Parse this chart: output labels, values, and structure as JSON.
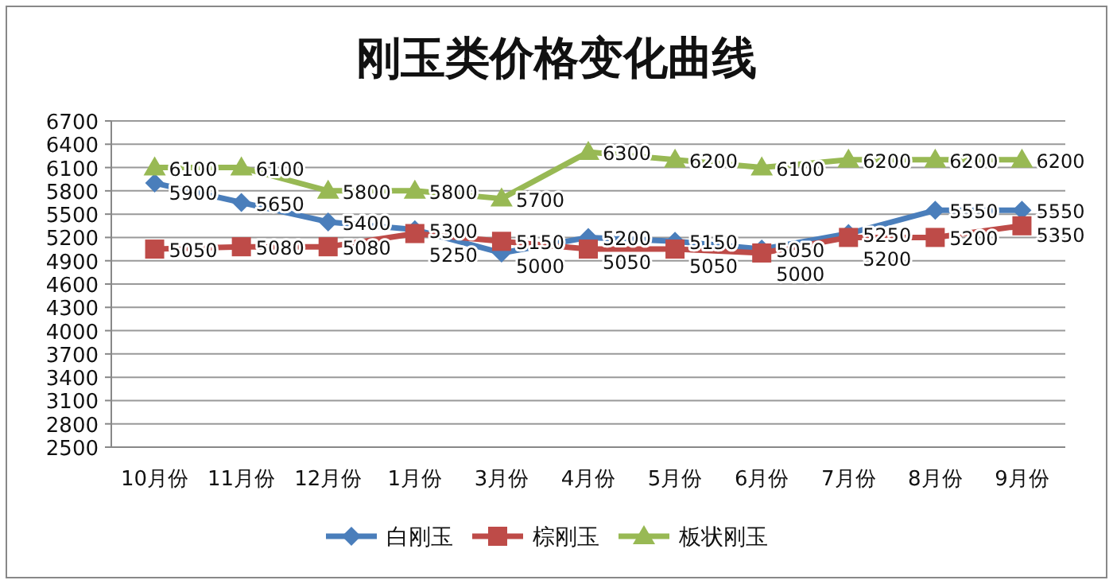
{
  "chart_data": {
    "type": "line",
    "title": "刚玉类价格变化曲线",
    "categories": [
      "10月份",
      "11月份",
      "12月份",
      "1月份",
      "3月份",
      "4月份",
      "5月份",
      "6月份",
      "7月份",
      "8月份",
      "9月份"
    ],
    "series": [
      {
        "name": "白刚玉",
        "color": "#4a7ebb",
        "marker": "diamond",
        "values": [
          5900,
          5650,
          5400,
          5300,
          5000,
          5200,
          5150,
          5050,
          5250,
          5550,
          5550
        ]
      },
      {
        "name": "棕刚玉",
        "color": "#be4b48",
        "marker": "square",
        "values": [
          5050,
          5080,
          5080,
          5250,
          5150,
          5050,
          5050,
          5000,
          5200,
          5200,
          5350
        ]
      },
      {
        "name": "板状刚玉",
        "color": "#98b954",
        "marker": "triangle",
        "values": [
          6100,
          6100,
          5800,
          5800,
          5700,
          6300,
          6200,
          6100,
          6200,
          6200,
          6200
        ]
      }
    ],
    "ylim": [
      2500,
      6700
    ],
    "yticks": [
      2500,
      2800,
      3100,
      3400,
      3700,
      4000,
      4300,
      4600,
      4900,
      5200,
      5500,
      5800,
      6100,
      6400,
      6700
    ],
    "grid": "y",
    "data_labels": true,
    "legend": "bottom"
  }
}
